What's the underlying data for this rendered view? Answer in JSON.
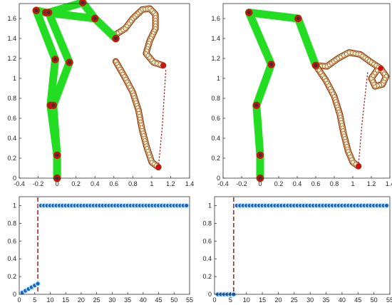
{
  "chart_data": [
    {
      "id": "top-left",
      "type": "line",
      "title": "",
      "xlabel": "",
      "ylabel": "",
      "xlim": [
        -0.4,
        1.4
      ],
      "ylim": [
        0,
        1.75
      ],
      "xticks": [
        -0.4,
        -0.2,
        0,
        0.2,
        0.4,
        0.6,
        0.8,
        1,
        1.2,
        1.4
      ],
      "xtick_labels": [
        "-0.4",
        "-0.2",
        "0",
        "0.2",
        "0.4",
        "0.6",
        "0.8",
        "1",
        "1.2",
        "1.4"
      ],
      "yticks": [
        0,
        0.2,
        0.4,
        0.6,
        0.8,
        1,
        1.2,
        1.4,
        1.6
      ],
      "ytick_labels": [
        "0",
        "0.2",
        "0.4",
        "0.6",
        "0.8",
        "1",
        "1.2",
        "1.4",
        "1.6"
      ],
      "grid": false,
      "colors": {
        "links": "#22dd22",
        "joints": "#cc1111",
        "tube_fill": "#f2ebc8",
        "tube_edge": "#8b3a0a",
        "trail": "#aa2222"
      },
      "chains": [
        [
          [
            0,
            0
          ],
          [
            0,
            0.23
          ],
          [
            -0.07,
            0.73
          ],
          [
            -0.02,
            1.19
          ],
          [
            -0.22,
            1.68
          ],
          [
            -0.12,
            1.66
          ],
          [
            0.4,
            1.6
          ],
          [
            0.62,
            1.4
          ]
        ],
        [
          [
            0,
            0
          ],
          [
            0,
            0.23
          ],
          [
            -0.04,
            0.73
          ],
          [
            0.13,
            1.16
          ],
          [
            -0.09,
            1.66
          ],
          [
            0.27,
            1.76
          ],
          [
            0.4,
            1.6
          ]
        ]
      ],
      "tubes": [
        [
          [
            0.62,
            1.44
          ],
          [
            0.72,
            1.5
          ],
          [
            0.8,
            1.6
          ],
          [
            0.9,
            1.69
          ],
          [
            0.98,
            1.7
          ],
          [
            1.04,
            1.64
          ],
          [
            1.04,
            1.5
          ],
          [
            0.98,
            1.38
          ],
          [
            0.94,
            1.25
          ],
          [
            1.02,
            1.16
          ],
          [
            1.12,
            1.13
          ]
        ],
        [
          [
            0.62,
            1.17
          ],
          [
            0.71,
            1.02
          ],
          [
            0.8,
            0.86
          ],
          [
            0.86,
            0.68
          ],
          [
            0.9,
            0.48
          ],
          [
            0.95,
            0.3
          ],
          [
            1,
            0.16
          ],
          [
            1.07,
            0.11
          ]
        ]
      ],
      "trail": [
        [
          1.07,
          0.11
        ],
        [
          1.11,
          0.5
        ],
        [
          1.15,
          1.1
        ]
      ]
    },
    {
      "id": "top-right",
      "type": "line",
      "title": "",
      "xlabel": "",
      "ylabel": "",
      "xlim": [
        -0.4,
        1.4
      ],
      "ylim": [
        0,
        1.75
      ],
      "xticks": [
        -0.4,
        -0.2,
        0,
        0.2,
        0.4,
        0.6,
        0.8,
        1,
        1.2,
        1.4
      ],
      "xtick_labels": [
        "-0.4",
        "-0.2",
        "0",
        "0.2",
        "0.4",
        "0.6",
        "0.8",
        "1",
        "1.2",
        "1.4"
      ],
      "yticks": [
        0,
        0.2,
        0.4,
        0.6,
        0.8,
        1,
        1.2,
        1.4,
        1.6
      ],
      "ytick_labels": [
        "0",
        "0.2",
        "0.4",
        "0.6",
        "0.8",
        "1",
        "1.2",
        "1.4",
        "1.6"
      ],
      "grid": false,
      "colors": {
        "links": "#22dd22",
        "joints": "#cc1111",
        "tube_fill": "#f2ebc8",
        "tube_edge": "#8b3a0a",
        "trail": "#aa2222"
      },
      "chains": [
        [
          [
            0,
            0
          ],
          [
            0,
            0.23
          ],
          [
            -0.04,
            0.73
          ],
          [
            0.12,
            1.14
          ],
          [
            -0.12,
            1.66
          ],
          [
            0.41,
            1.6
          ],
          [
            0.6,
            1.13
          ]
        ]
      ],
      "tubes": [
        [
          [
            0.6,
            1.13
          ],
          [
            0.72,
            1.12
          ],
          [
            0.84,
            1.2
          ],
          [
            0.96,
            1.26
          ],
          [
            1.08,
            1.24
          ],
          [
            1.2,
            1.16
          ],
          [
            1.3,
            1.1
          ],
          [
            1.36,
            1.02
          ],
          [
            1.32,
            0.94
          ],
          [
            1.24,
            0.92
          ],
          [
            1.2,
            1
          ],
          [
            1.26,
            1.08
          ],
          [
            1.3,
            1.1
          ]
        ],
        [
          [
            0.6,
            1.13
          ],
          [
            0.71,
            0.98
          ],
          [
            0.8,
            0.82
          ],
          [
            0.86,
            0.64
          ],
          [
            0.9,
            0.45
          ],
          [
            0.95,
            0.27
          ],
          [
            1,
            0.16
          ],
          [
            1.06,
            0.12
          ]
        ]
      ],
      "trail": [
        [
          1.06,
          0.12
        ],
        [
          1.1,
          0.55
        ],
        [
          1.16,
          1.06
        ]
      ]
    },
    {
      "id": "bottom-left",
      "type": "scatter",
      "title": "",
      "xlabel": "",
      "ylabel": "",
      "xlim": [
        0,
        55
      ],
      "ylim": [
        0,
        1.1
      ],
      "xticks": [
        0,
        5,
        10,
        15,
        20,
        25,
        30,
        35,
        40,
        45,
        50,
        55
      ],
      "xtick_labels": [
        "0",
        "5",
        "10",
        "15",
        "20",
        "25",
        "30",
        "35",
        "40",
        "45",
        "50",
        "55"
      ],
      "yticks": [
        0,
        0.2,
        0.4,
        0.6,
        0.8,
        1
      ],
      "ytick_labels": [
        "0",
        "0.2",
        "0.4",
        "0.6",
        "0.8",
        "1"
      ],
      "grid": false,
      "colors": {
        "points": "#1f5fbf",
        "glow": "#b8f0ff",
        "vline": "#a52a2a"
      },
      "switch_x": 6,
      "x": [
        1,
        2,
        3,
        4,
        5,
        6,
        7,
        8,
        9,
        10,
        11,
        12,
        13,
        14,
        15,
        16,
        17,
        18,
        19,
        20,
        21,
        22,
        23,
        24,
        25,
        26,
        27,
        28,
        29,
        30,
        31,
        32,
        33,
        34,
        35,
        36,
        37,
        38,
        39,
        40,
        41,
        42,
        43,
        44,
        45,
        46,
        47,
        48,
        49,
        50,
        51,
        52,
        53,
        54
      ],
      "y": [
        0.02,
        0.04,
        0.06,
        0.08,
        0.1,
        0.12,
        1,
        1,
        1,
        1,
        1,
        1,
        1,
        1,
        1,
        1,
        1,
        1,
        1,
        1,
        1,
        1,
        1,
        1,
        1,
        1,
        1,
        1,
        1,
        1,
        1,
        1,
        1,
        1,
        1,
        1,
        1,
        1,
        1,
        1,
        1,
        1,
        1,
        1,
        1,
        1,
        1,
        1,
        1,
        1,
        1,
        1,
        1,
        1
      ]
    },
    {
      "id": "bottom-right",
      "type": "scatter",
      "title": "",
      "xlabel": "",
      "ylabel": "",
      "xlim": [
        0,
        55
      ],
      "ylim": [
        0,
        1.1
      ],
      "xticks": [
        0,
        5,
        10,
        15,
        20,
        25,
        30,
        35,
        40,
        45,
        50,
        55
      ],
      "xtick_labels": [
        "0",
        "5",
        "10",
        "15",
        "20",
        "25",
        "30",
        "35",
        "40",
        "45",
        "50",
        "55"
      ],
      "yticks": [
        0,
        0.2,
        0.4,
        0.6,
        0.8,
        1
      ],
      "ytick_labels": [
        "0",
        "0.2",
        "0.4",
        "0.6",
        "0.8",
        "1"
      ],
      "grid": false,
      "colors": {
        "points": "#1f5fbf",
        "glow": "#b8f0ff",
        "vline": "#a52a2a"
      },
      "switch_x": 6,
      "x": [
        1,
        2,
        3,
        4,
        5,
        6,
        7,
        8,
        9,
        10,
        11,
        12,
        13,
        14,
        15,
        16,
        17,
        18,
        19,
        20,
        21,
        22,
        23,
        24,
        25,
        26,
        27,
        28,
        29,
        30,
        31,
        32,
        33,
        34,
        35,
        36,
        37,
        38,
        39,
        40,
        41,
        42,
        43,
        44,
        45,
        46,
        47,
        48,
        49,
        50,
        51,
        52,
        53,
        54
      ],
      "y": [
        0,
        0,
        0,
        0,
        0,
        0,
        1,
        1,
        1,
        1,
        1,
        1,
        1,
        1,
        1,
        1,
        1,
        1,
        1,
        1,
        1,
        1,
        1,
        1,
        1,
        1,
        1,
        1,
        1,
        1,
        1,
        1,
        1,
        1,
        1,
        1,
        1,
        1,
        1,
        1,
        1,
        1,
        1,
        1,
        1,
        1,
        1,
        1,
        1,
        1,
        1,
        1,
        1,
        1
      ]
    }
  ]
}
